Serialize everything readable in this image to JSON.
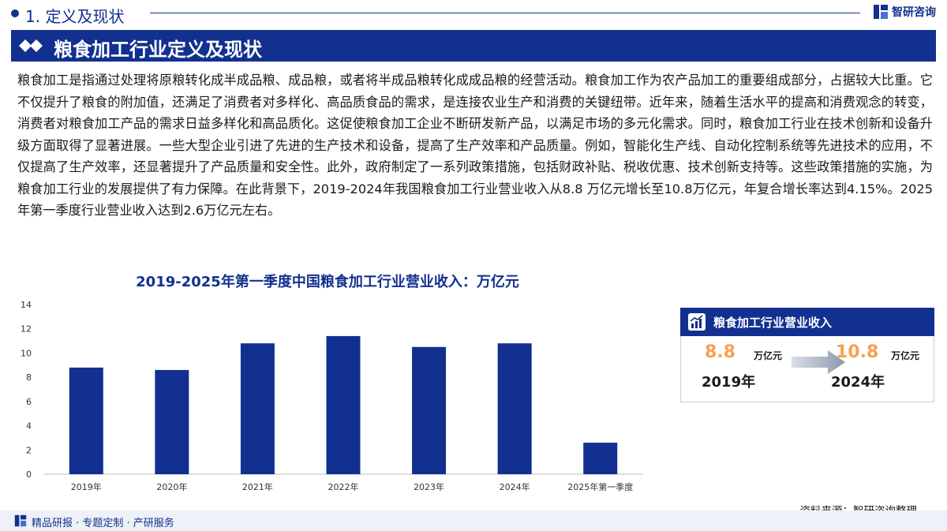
{
  "header": {
    "section": "1. 定义及现状",
    "brand": "智研咨询"
  },
  "banner": {
    "title": "粮食加工行业定义及现状"
  },
  "paragraph": "粮食加工是指通过处理将原粮转化成半成品粮、成品粮，或者将半成品粮转化成成品粮的经营活动。粮食加工作为农产品加工的重要组成部分，占据较大比重。它不仅提升了粮食的附加值，还满足了消费者对多样化、高品质食品的需求，是连接农业生产和消费的关键纽带。近年来，随着生活水平的提高和消费观念的转变，消费者对粮食加工产品的需求日益多样化和高品质化。这促使粮食加工企业不断研发新产品，以满足市场的多元化需求。同时，粮食加工行业在技术创新和设备升级方面取得了显著进展。一些大型企业引进了先进的生产技术和设备，提高了生产效率和产品质量。例如，智能化生产线、自动化控制系统等先进技术的应用，不仅提高了生产效率，还显著提升了产品质量和安全性。此外，政府制定了一系列政策措施，包括财政补贴、税收优惠、技术创新支持等。这些政策措施的实施，为粮食加工行业的发展提供了有力保障。在此背景下，2019-2024年我国粮食加工行业营业收入从8.8 万亿元增长至10.8万亿元，年复合增长率达到4.15%。2025年第一季度行业营业收入达到2.6万亿元左右。",
  "chart_data": {
    "type": "bar",
    "title": "2019-2025年第一季度中国粮食加工行业营业收入：万亿元",
    "categories": [
      "2019年",
      "2020年",
      "2021年",
      "2022年",
      "2023年",
      "2024年",
      "2025年第一季度"
    ],
    "values": [
      8.8,
      8.6,
      10.8,
      11.4,
      10.5,
      10.8,
      2.6
    ],
    "yticks": [
      "0",
      "2",
      "4",
      "6",
      "8",
      "10",
      "12",
      "14"
    ],
    "ylim": [
      0,
      14
    ],
    "xlabel": "",
    "ylabel": "",
    "grid": false,
    "legend": "none",
    "bar_color": "#12308f"
  },
  "card": {
    "title": "粮食加工行业营业收入",
    "from": {
      "value": "8.8",
      "unit": "万亿元",
      "year": "2019年"
    },
    "to": {
      "value": "10.8",
      "unit": "万亿元",
      "year": "2024年"
    }
  },
  "source": "资料来源：智研咨询整理",
  "footer": "精品研报 · 专题定制 · 产研服务",
  "colors": {
    "primary": "#12308f",
    "accent": "#f6a14e"
  }
}
